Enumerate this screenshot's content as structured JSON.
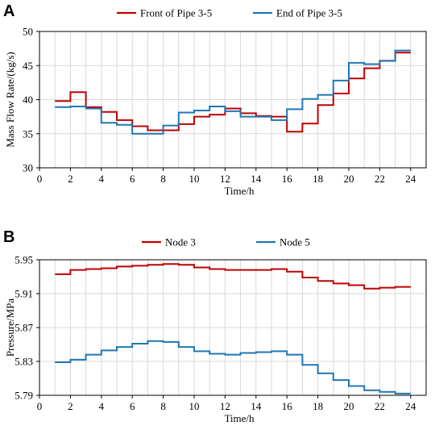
{
  "chart_data": [
    {
      "panel": "A",
      "type": "line",
      "step": true,
      "xlabel": "Time/h",
      "ylabel": "Mass Flow Rate/(kg/s)",
      "xlim": [
        0,
        25
      ],
      "ylim": [
        30,
        50
      ],
      "xticks": [
        0,
        2,
        4,
        6,
        8,
        10,
        12,
        14,
        16,
        18,
        20,
        22,
        24
      ],
      "yticks": [
        30,
        35,
        40,
        45,
        50
      ],
      "grid": true,
      "legend_position": "top",
      "x": [
        1,
        2,
        3,
        4,
        5,
        6,
        7,
        8,
        9,
        10,
        11,
        12,
        13,
        14,
        15,
        16,
        17,
        18,
        19,
        20,
        21,
        22,
        23,
        24
      ],
      "series": [
        {
          "name": "Front of Pipe 3-5",
          "color": "#c00000",
          "values": [
            39.8,
            41.1,
            38.9,
            38.2,
            37.0,
            36.1,
            35.5,
            35.5,
            36.4,
            37.5,
            37.8,
            38.7,
            38.0,
            37.6,
            37.5,
            35.3,
            36.5,
            39.2,
            40.9,
            43.1,
            44.6,
            45.7,
            46.9,
            46.9
          ]
        },
        {
          "name": "End of Pipe 3-5",
          "color": "#1f77b4",
          "values": [
            38.9,
            39.0,
            38.7,
            36.6,
            36.3,
            35.0,
            35.0,
            36.2,
            38.1,
            38.4,
            39.0,
            38.3,
            37.5,
            37.5,
            37.0,
            38.6,
            40.1,
            40.7,
            42.8,
            45.4,
            45.2,
            45.7,
            47.2,
            47.2
          ]
        }
      ]
    },
    {
      "panel": "B",
      "type": "line",
      "step": true,
      "xlabel": "Time/h",
      "ylabel": "Pressure/MPa",
      "xlim": [
        0,
        25
      ],
      "ylim": [
        5.79,
        5.95
      ],
      "xticks": [
        0,
        2,
        4,
        6,
        8,
        10,
        12,
        14,
        16,
        18,
        20,
        22,
        24
      ],
      "yticks": [
        5.79,
        5.83,
        5.87,
        5.91,
        5.95
      ],
      "grid": true,
      "legend_position": "top",
      "x": [
        1,
        2,
        3,
        4,
        5,
        6,
        7,
        8,
        9,
        10,
        11,
        12,
        13,
        14,
        15,
        16,
        17,
        18,
        19,
        20,
        21,
        22,
        23,
        24
      ],
      "series": [
        {
          "name": "Node 3",
          "color": "#c00000",
          "values": [
            5.933,
            5.938,
            5.939,
            5.94,
            5.942,
            5.943,
            5.944,
            5.945,
            5.944,
            5.941,
            5.939,
            5.938,
            5.938,
            5.938,
            5.939,
            5.936,
            5.929,
            5.925,
            5.922,
            5.92,
            5.916,
            5.917,
            5.918,
            5.918
          ]
        },
        {
          "name": "Node 5",
          "color": "#1f77b4",
          "values": [
            5.829,
            5.832,
            5.838,
            5.843,
            5.847,
            5.851,
            5.854,
            5.853,
            5.847,
            5.842,
            5.839,
            5.838,
            5.84,
            5.841,
            5.842,
            5.838,
            5.826,
            5.816,
            5.808,
            5.801,
            5.796,
            5.794,
            5.792,
            5.792
          ]
        }
      ]
    }
  ],
  "panels": {
    "a": {
      "letter": "A"
    },
    "b": {
      "letter": "B"
    }
  }
}
